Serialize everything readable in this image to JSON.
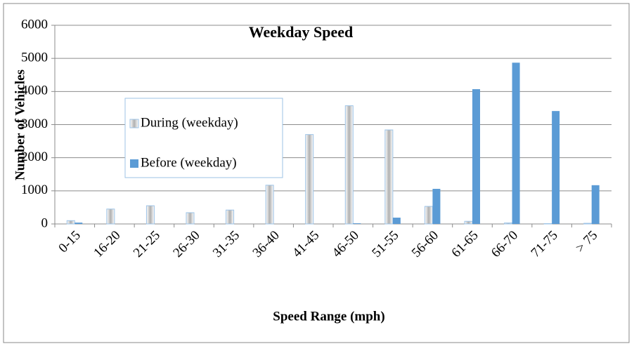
{
  "chart_data": {
    "type": "bar",
    "title": "Weekday Speed",
    "x_label": "Speed Range (mph)",
    "y_label": "Number of Vehicles",
    "categories": [
      "0-15",
      "16-20",
      "21-25",
      "26-30",
      "31-35",
      "36-40",
      "41-45",
      "46-50",
      "51-55",
      "56-60",
      "61-65",
      "66-70",
      "71-75",
      "> 75"
    ],
    "series": [
      {
        "name": "During (weekday)",
        "color": "#b0b0b0",
        "values": [
          100,
          450,
          550,
          340,
          420,
          1170,
          2700,
          3570,
          2840,
          530,
          80,
          30,
          10,
          20
        ]
      },
      {
        "name": "Before (weekday)",
        "color": "#5b9bd5",
        "values": [
          40,
          0,
          0,
          0,
          0,
          0,
          0,
          20,
          190,
          1060,
          4070,
          4870,
          3410,
          1170
        ]
      }
    ],
    "ylim": [
      0,
      6000
    ],
    "yticks": [
      0,
      1000,
      2000,
      3000,
      4000,
      5000,
      6000
    ],
    "grid": true
  }
}
